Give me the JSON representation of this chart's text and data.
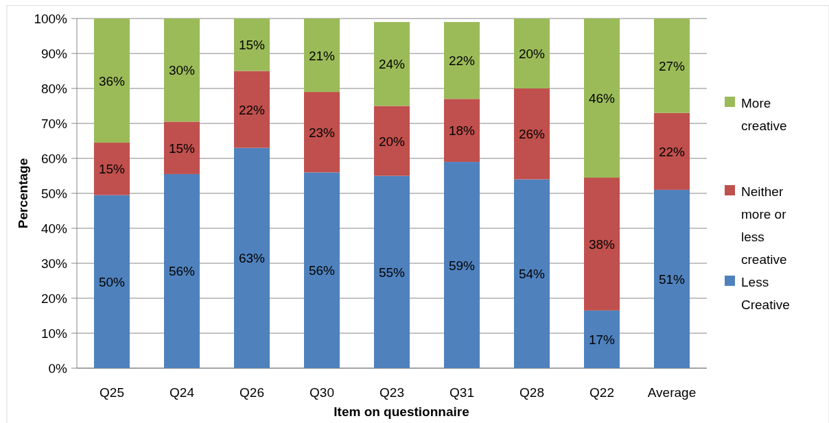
{
  "chart_data": {
    "type": "bar",
    "stacked": true,
    "xlabel": "Item on questionnaire",
    "ylabel": "Percentage",
    "categories": [
      "Q25",
      "Q24",
      "Q26",
      "Q30",
      "Q23",
      "Q31",
      "Q28",
      "Q22",
      "Average"
    ],
    "series": [
      {
        "name": "Less Creative",
        "color": "#4f81bd",
        "values": [
          49.5,
          55.5,
          63,
          56,
          55,
          59,
          54,
          16.5,
          51
        ],
        "value_labels": [
          "50%",
          "56%",
          "63%",
          "56%",
          "55%",
          "59%",
          "54%",
          "17%",
          "51%"
        ]
      },
      {
        "name": "Neither more or less creative",
        "color": "#c0504d",
        "values": [
          15,
          15,
          22,
          23,
          20,
          18,
          26,
          38,
          22
        ],
        "value_labels": [
          "15%",
          "15%",
          "22%",
          "23%",
          "20%",
          "18%",
          "26%",
          "38%",
          "22%"
        ]
      },
      {
        "name": "More creative",
        "color": "#9bbb59",
        "values": [
          35.5,
          29.5,
          15,
          21,
          24,
          22,
          20,
          45.5,
          27
        ],
        "value_labels": [
          "36%",
          "30%",
          "15%",
          "21%",
          "24%",
          "22%",
          "20%",
          "46%",
          "27%"
        ]
      }
    ],
    "ylim": [
      0,
      100
    ],
    "yticks": [
      {
        "value": 0,
        "label": "0%"
      },
      {
        "value": 10,
        "label": "10%"
      },
      {
        "value": 20,
        "label": "20%"
      },
      {
        "value": 30,
        "label": "30%"
      },
      {
        "value": 40,
        "label": "40%"
      },
      {
        "value": 50,
        "label": "50%"
      },
      {
        "value": 60,
        "label": "60%"
      },
      {
        "value": 70,
        "label": "70%"
      },
      {
        "value": 80,
        "label": "80%"
      },
      {
        "value": 90,
        "label": "90%"
      },
      {
        "value": 100,
        "label": "100%"
      }
    ],
    "grid": "y",
    "legend": "right"
  }
}
